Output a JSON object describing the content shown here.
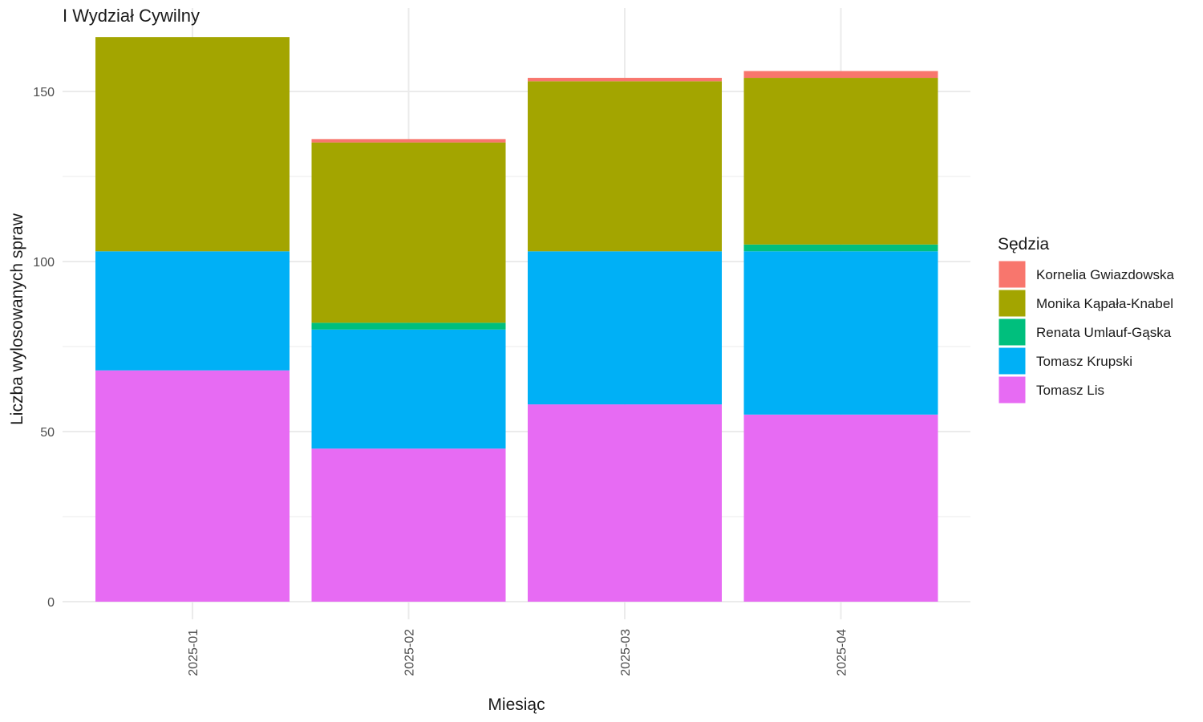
{
  "chart_data": {
    "type": "bar",
    "stacked": true,
    "title": "I Wydział Cywilny",
    "xlabel": "Miesiąc",
    "ylabel": "Liczba wylosowanych spraw",
    "ylim": [
      0,
      170
    ],
    "yticks": [
      0,
      50,
      100,
      150
    ],
    "grid": true,
    "legend_title": "Sędzia",
    "legend_position": "right",
    "categories": [
      "2025-01",
      "2025-02",
      "2025-03",
      "2025-04"
    ],
    "series": [
      {
        "name": "Tomasz Lis",
        "color": "#E76BF3",
        "values": [
          68,
          45,
          58,
          55
        ]
      },
      {
        "name": "Tomasz Krupski",
        "color": "#00B0F6",
        "values": [
          35,
          35,
          45,
          48
        ]
      },
      {
        "name": "Renata Umlauf-Gąska",
        "color": "#00BF7D",
        "values": [
          0,
          2,
          0,
          2
        ]
      },
      {
        "name": "Monika Kąpała-Knabel",
        "color": "#A3A500",
        "values": [
          63,
          53,
          50,
          49
        ]
      },
      {
        "name": "Kornelia Gwiazdowska",
        "color": "#F8766D",
        "values": [
          0,
          1,
          1,
          2
        ]
      }
    ],
    "legend_order": [
      "Kornelia Gwiazdowska",
      "Monika Kąpała-Knabel",
      "Renata Umlauf-Gąska",
      "Tomasz Krupski",
      "Tomasz Lis"
    ]
  }
}
